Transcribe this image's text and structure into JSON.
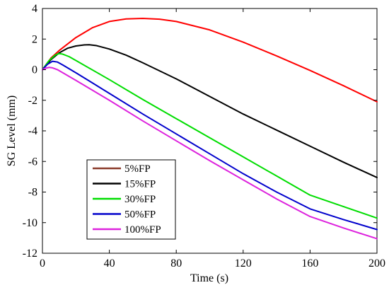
{
  "chart_data": {
    "type": "line",
    "xlabel": "Time (s)",
    "ylabel": "SG Level (mm)",
    "xlim": [
      0,
      200
    ],
    "ylim": [
      -12,
      4
    ],
    "xticks": [
      0,
      40,
      80,
      120,
      160,
      200
    ],
    "yticks": [
      4,
      2,
      0,
      -2,
      -4,
      -6,
      -8,
      -10,
      -12
    ],
    "grid": false,
    "legend_position": "lower-left",
    "series": [
      {
        "name": "5%FP",
        "color": "#ff0000",
        "legend_color": "#8b3a2a",
        "x": [
          0,
          5,
          10,
          20,
          30,
          40,
          50,
          60,
          70,
          80,
          100,
          120,
          140,
          160,
          180,
          200
        ],
        "y": [
          0,
          0.75,
          1.25,
          2.1,
          2.75,
          3.15,
          3.32,
          3.35,
          3.3,
          3.15,
          2.6,
          1.8,
          0.9,
          -0.05,
          -1.05,
          -2.1
        ]
      },
      {
        "name": "15%FP",
        "color": "#000000",
        "x": [
          0,
          5,
          10,
          15,
          20,
          25,
          28,
          32,
          40,
          50,
          60,
          80,
          100,
          120,
          140,
          160,
          180,
          200
        ],
        "y": [
          0,
          0.65,
          1.1,
          1.4,
          1.55,
          1.62,
          1.63,
          1.58,
          1.35,
          0.95,
          0.45,
          -0.6,
          -1.75,
          -2.9,
          -3.95,
          -5.0,
          -6.05,
          -7.05
        ]
      },
      {
        "name": "30%FP",
        "color": "#00dd00",
        "x": [
          0,
          4,
          8,
          10,
          12,
          16,
          20,
          40,
          60,
          80,
          100,
          120,
          140,
          160,
          180,
          200
        ],
        "y": [
          0,
          0.6,
          0.98,
          1.05,
          1.02,
          0.85,
          0.6,
          -0.65,
          -1.95,
          -3.2,
          -4.45,
          -5.7,
          -6.95,
          -8.2,
          -8.95,
          -9.7
        ]
      },
      {
        "name": "50%FP",
        "color": "#0000cc",
        "x": [
          0,
          3,
          6,
          9,
          12,
          20,
          40,
          60,
          80,
          100,
          120,
          140,
          160,
          180,
          200
        ],
        "y": [
          0,
          0.35,
          0.55,
          0.5,
          0.32,
          -0.2,
          -1.55,
          -2.9,
          -4.2,
          -5.5,
          -6.8,
          -8.0,
          -9.1,
          -9.8,
          -10.45
        ]
      },
      {
        "name": "100%FP",
        "color": "#dd22dd",
        "x": [
          0,
          2,
          4,
          6,
          9,
          20,
          40,
          60,
          80,
          100,
          120,
          140,
          160,
          180,
          200
        ],
        "y": [
          0,
          0.1,
          0.15,
          0.12,
          0.0,
          -0.7,
          -2.0,
          -3.35,
          -4.65,
          -5.95,
          -7.2,
          -8.45,
          -9.6,
          -10.35,
          -11.05
        ]
      }
    ]
  }
}
